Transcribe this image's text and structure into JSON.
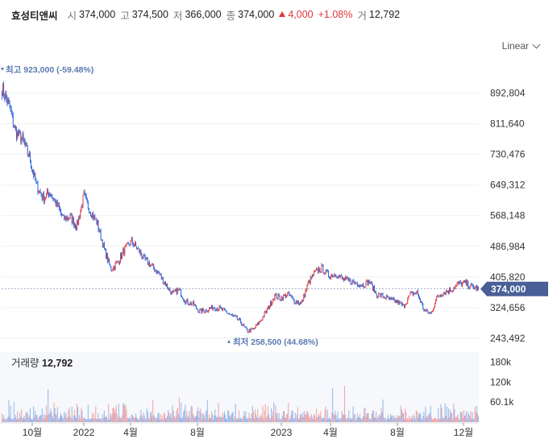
{
  "header": {
    "name": "효성티앤씨",
    "open_label": "시",
    "open": "374,000",
    "high_label": "고",
    "high": "374,500",
    "low_label": "저",
    "low": "366,000",
    "close_label": "종",
    "close": "374,000",
    "change": "4,000",
    "change_pct": "+1.08%",
    "volume_label": "거",
    "volume": "12,792"
  },
  "scale_mode": "Linear",
  "chart_data": {
    "type": "candlestick",
    "y_ticks": [
      "892,804",
      "811,640",
      "730,476",
      "649,312",
      "568,148",
      "486,984",
      "405,820",
      "324,656",
      "243,492"
    ],
    "y_tick_values": [
      892804,
      811640,
      730476,
      649312,
      568148,
      486984,
      405820,
      324656,
      243492
    ],
    "ylim": [
      222000,
      990000
    ],
    "x_ticks": [
      "10월",
      "2022",
      "4월",
      "8월",
      "2023",
      "4월",
      "8월",
      "12월"
    ],
    "last_price": 374000,
    "last_price_label": "374,000",
    "max_marker": {
      "label": "최고 923,000 (-59.48%)",
      "value": 923000
    },
    "min_marker": {
      "label": "최저 258,500 (44.68%)",
      "value": 258500
    },
    "price_path": [
      [
        0,
        905000
      ],
      [
        1,
        860000
      ],
      [
        2,
        790000
      ],
      [
        3,
        770000
      ],
      [
        4,
        725000
      ],
      [
        5,
        650000
      ],
      [
        6,
        615000
      ],
      [
        7,
        630000
      ],
      [
        8,
        598000
      ],
      [
        9,
        560000
      ],
      [
        10,
        565000
      ],
      [
        11,
        540000
      ],
      [
        12,
        620000
      ],
      [
        13,
        580000
      ],
      [
        14,
        548000
      ],
      [
        15,
        480000
      ],
      [
        16,
        425000
      ],
      [
        17,
        445000
      ],
      [
        18,
        478000
      ],
      [
        19,
        500000
      ],
      [
        20,
        478000
      ],
      [
        21,
        450000
      ],
      [
        22,
        435000
      ],
      [
        23,
        415000
      ],
      [
        24,
        388000
      ],
      [
        25,
        360000
      ],
      [
        26,
        372000
      ],
      [
        27,
        340000
      ],
      [
        28,
        335000
      ],
      [
        29,
        315000
      ],
      [
        30,
        318000
      ],
      [
        31,
        326000
      ],
      [
        32,
        322000
      ],
      [
        33,
        312000
      ],
      [
        34,
        300000
      ],
      [
        35,
        288000
      ],
      [
        36,
        262000
      ],
      [
        37,
        268000
      ],
      [
        38,
        290000
      ],
      [
        39,
        320000
      ],
      [
        40,
        355000
      ],
      [
        41,
        350000
      ],
      [
        42,
        360000
      ],
      [
        43,
        342000
      ],
      [
        44,
        335000
      ],
      [
        45,
        390000
      ],
      [
        46,
        418000
      ],
      [
        47,
        430000
      ],
      [
        48,
        408000
      ],
      [
        49,
        415000
      ],
      [
        50,
        400000
      ],
      [
        51,
        395000
      ],
      [
        52,
        390000
      ],
      [
        53,
        385000
      ],
      [
        54,
        394000
      ],
      [
        55,
        360000
      ],
      [
        56,
        355000
      ],
      [
        57,
        345000
      ],
      [
        58,
        340000
      ],
      [
        59,
        328000
      ],
      [
        60,
        360000
      ],
      [
        61,
        365000
      ],
      [
        62,
        318000
      ],
      [
        63,
        308000
      ],
      [
        64,
        355000
      ],
      [
        65,
        366000
      ],
      [
        66,
        372000
      ],
      [
        67,
        387000
      ],
      [
        68,
        390000
      ],
      [
        69,
        380000
      ],
      [
        70,
        374000
      ]
    ],
    "volume_ticks": [
      "180k",
      "120k",
      "60.1k"
    ],
    "volume_tick_values": [
      180000,
      120000,
      60100
    ],
    "volume_max": 210000,
    "volume_title_label": "거래량",
    "volume_title_value": "12,792"
  }
}
